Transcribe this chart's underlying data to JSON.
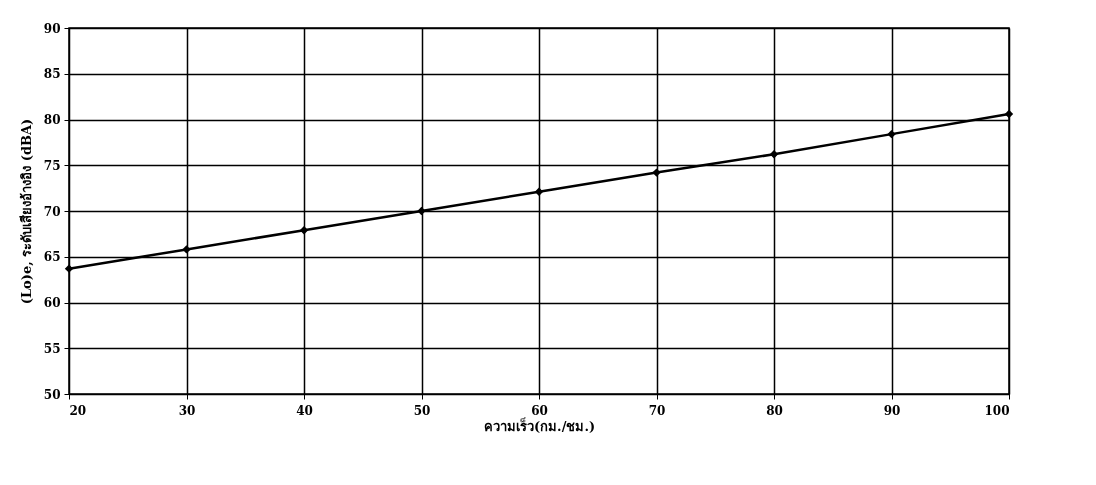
{
  "chart_data": {
    "type": "line",
    "xlabel": "ความเร็ว(กม./ชม.)",
    "ylabel": "(Lo)e, ระดับเสียงอ้างอิง (dBA)",
    "x": [
      20,
      30,
      40,
      50,
      60,
      70,
      80,
      90,
      100
    ],
    "series": [
      {
        "color": "#000000",
        "values": [
          63.7,
          65.8,
          67.9,
          70,
          72.1,
          74.2,
          76.2,
          78.4,
          80.6
        ]
      }
    ],
    "xlim": [
      20,
      100
    ],
    "xticks": [
      20,
      30,
      40,
      50,
      60,
      70,
      80,
      90,
      100
    ],
    "ylim": [
      50,
      90
    ],
    "yticks": [
      50,
      55,
      60,
      65,
      70,
      75,
      80,
      85,
      90
    ],
    "grid": true,
    "marker": "diamond",
    "line_style": "solid"
  }
}
